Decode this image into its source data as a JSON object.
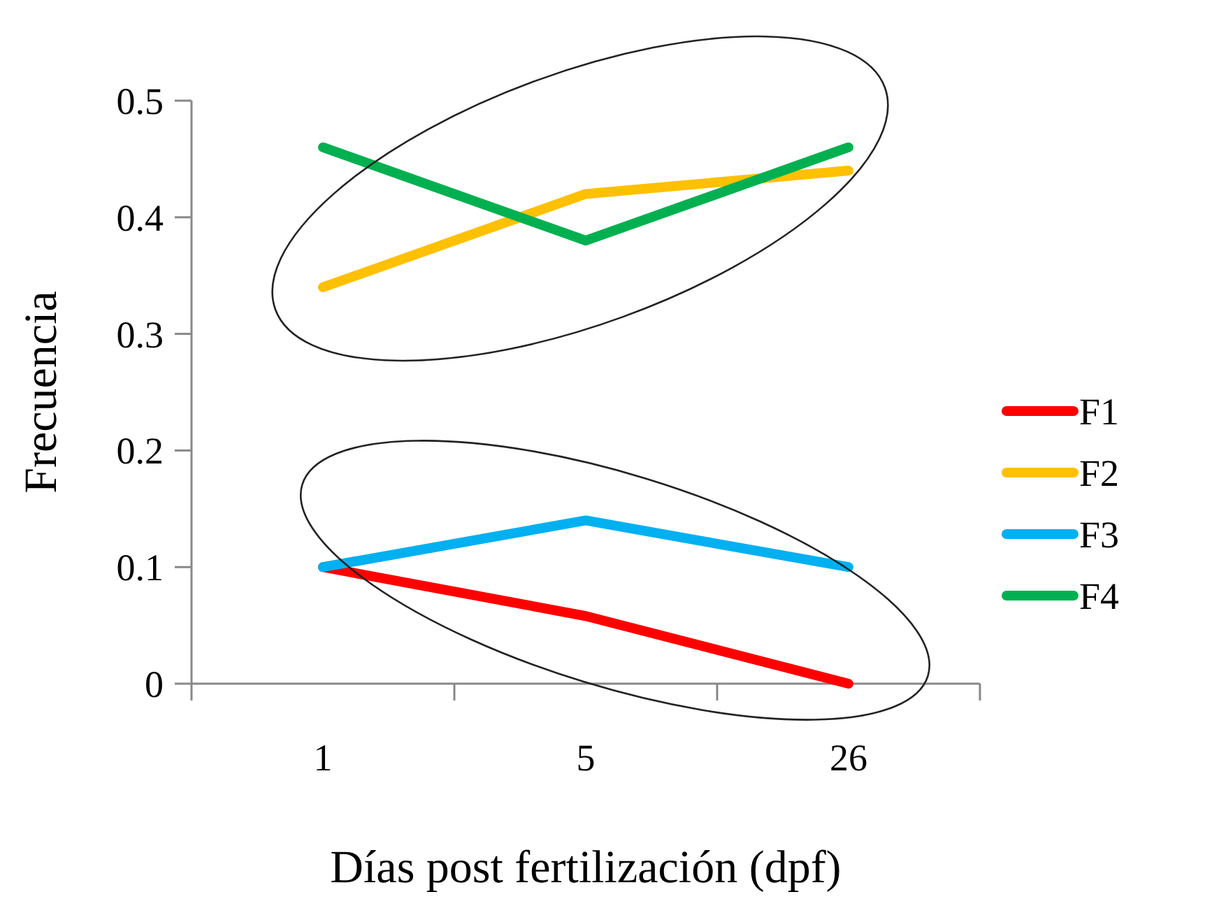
{
  "chart_data": {
    "type": "line",
    "xlabel": "Días post fertilización (dpf)",
    "ylabel": "Frecuencia",
    "categories": [
      "1",
      "5",
      "26"
    ],
    "ylim": [
      0,
      0.5
    ],
    "yticks": [
      0,
      0.1,
      0.2,
      0.3,
      0.4,
      0.5
    ],
    "legend": "right",
    "grid": false,
    "marker": "none",
    "line_style": "solid",
    "series": [
      {
        "name": "F1",
        "color": "#ff0000",
        "values": [
          0.1,
          0.058,
          0
        ]
      },
      {
        "name": "F2",
        "color": "#ffc000",
        "values": [
          0.34,
          0.42,
          0.44
        ]
      },
      {
        "name": "F3",
        "color": "#00b0f0",
        "values": [
          0.1,
          0.14,
          0.1
        ]
      },
      {
        "name": "F4",
        "color": "#00b050",
        "values": [
          0.46,
          0.38,
          0.46
        ]
      }
    ]
  }
}
